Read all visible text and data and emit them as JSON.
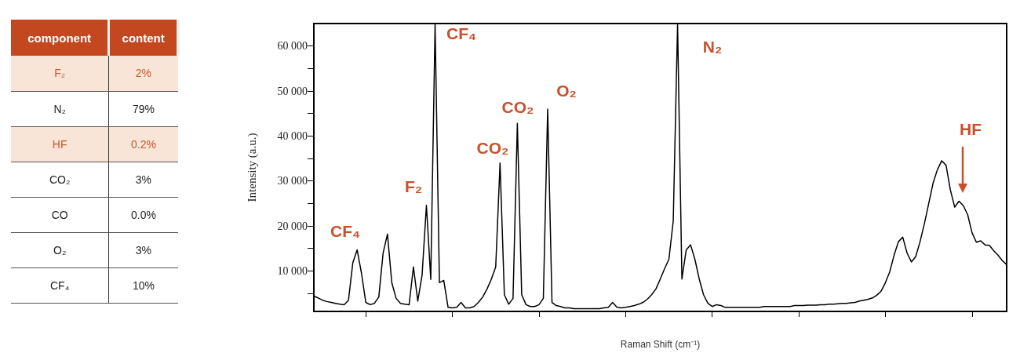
{
  "chart_data": [
    {
      "type": "other",
      "xlabel": "component",
      "ylabel": "content",
      "categories": [
        "F₂",
        "N₂",
        "HF",
        "CO₂",
        "CO",
        "O₂",
        "CF₄"
      ],
      "value_labels": [
        "2%",
        "79%",
        "0.2%",
        "3%",
        "0.0%",
        "3%",
        "10%"
      ],
      "colors": [
        "#f8e5d8",
        "#ffffff",
        "#f8e5d8",
        "#ffffff",
        "#ffffff",
        "#ffffff",
        "#ffffff"
      ]
    },
    {
      "type": "line",
      "xlabel": "Raman Shift (cm⁻¹)",
      "ylabel": "Intensity (a.u.)",
      "categories": [
        null,
        null,
        null,
        null,
        null,
        null,
        null,
        null,
        null,
        null,
        null,
        null,
        null,
        null,
        null,
        null,
        null,
        null,
        null,
        null,
        null,
        null,
        null,
        null,
        null,
        null,
        null,
        null,
        null,
        null,
        null,
        null,
        null,
        null,
        null,
        null,
        null,
        null,
        null,
        null,
        null,
        null,
        null,
        null,
        null,
        null,
        null,
        null,
        null,
        null,
        null,
        null,
        null,
        null,
        null,
        null,
        null,
        null,
        null,
        null,
        null,
        null,
        null,
        null,
        null,
        null,
        null,
        null,
        null,
        null,
        null,
        null,
        null,
        null,
        null,
        null,
        null,
        null,
        null,
        null,
        null,
        null,
        null,
        null,
        null,
        null,
        null,
        null,
        null,
        null,
        null,
        null,
        null,
        null,
        null,
        null,
        null,
        null,
        null,
        null,
        null,
        null,
        null,
        null,
        null,
        null,
        null,
        null,
        null,
        null,
        null,
        null,
        null,
        null,
        null,
        null,
        null,
        null,
        null,
        null,
        null,
        null,
        null,
        null,
        null,
        null,
        null,
        null,
        null,
        null,
        null,
        null,
        null,
        null,
        null,
        null,
        null,
        null,
        null,
        null,
        null,
        null,
        null,
        null,
        null,
        null,
        null,
        null,
        null,
        null,
        null,
        null,
        null,
        null,
        null,
        null,
        null,
        null,
        null,
        null,
        null
      ],
      "series": [
        {
          "color": "#000000",
          "values": [
            4400,
            4000,
            3500,
            3200,
            3000,
            2800,
            2600,
            2500,
            3500,
            11800,
            14700,
            9500,
            3000,
            2500,
            2800,
            4200,
            14000,
            18200,
            7400,
            3900,
            2800,
            2600,
            2500,
            10900,
            3300,
            9100,
            24600,
            8100,
            64900,
            7400,
            7900,
            1900,
            1800,
            1900,
            3000,
            1800,
            1800,
            2100,
            3000,
            4200,
            6000,
            8200,
            10900,
            34000,
            4700,
            2600,
            3900,
            42800,
            4700,
            2500,
            2100,
            2100,
            2500,
            3900,
            46000,
            3000,
            2300,
            2100,
            1800,
            1800,
            1600,
            1600,
            1600,
            1600,
            1600,
            1600,
            1600,
            1800,
            1900,
            3000,
            1900,
            1800,
            1900,
            2100,
            2300,
            2600,
            3000,
            3700,
            4700,
            6000,
            8200,
            10500,
            12600,
            21100,
            64900,
            8200,
            14700,
            15800,
            12600,
            8200,
            4700,
            2800,
            2100,
            2500,
            2300,
            1900,
            1900,
            1900,
            1900,
            1900,
            1900,
            1900,
            1900,
            1900,
            2100,
            2100,
            2100,
            2100,
            2100,
            2100,
            2100,
            2300,
            2300,
            2300,
            2400,
            2400,
            2400,
            2500,
            2500,
            2600,
            2600,
            2700,
            2800,
            2800,
            2900,
            3000,
            3300,
            3500,
            3700,
            4000,
            4600,
            5500,
            7400,
            9800,
            13500,
            16500,
            17500,
            14000,
            12000,
            13200,
            16500,
            20500,
            25000,
            29500,
            32500,
            34500,
            33500,
            28000,
            24200,
            25500,
            24500,
            22500,
            18500,
            16400,
            16700,
            15800,
            15700,
            14500,
            13500,
            12300,
            11400
          ]
        }
      ],
      "ylim": [
        1000,
        65000
      ],
      "yticks": [
        {
          "value": 5000,
          "label": null
        },
        {
          "value": 10000,
          "label": "10 000"
        },
        {
          "value": 15000,
          "label": null
        },
        {
          "value": 20000,
          "label": "20 000"
        },
        {
          "value": 25000,
          "label": null
        },
        {
          "value": 30000,
          "label": "30 000"
        },
        {
          "value": 35000,
          "label": null
        },
        {
          "value": 40000,
          "label": "40 000"
        },
        {
          "value": 45000,
          "label": null
        },
        {
          "value": 50000,
          "label": "50 000"
        },
        {
          "value": 55000,
          "label": null
        },
        {
          "value": 60000,
          "label": "60 000"
        }
      ],
      "tick_labels": "y",
      "annotations": [
        "CF₄",
        "F₂",
        "CF₄",
        "CO₂",
        "CO₂",
        "O₂",
        "N₂",
        "HF"
      ]
    }
  ]
}
